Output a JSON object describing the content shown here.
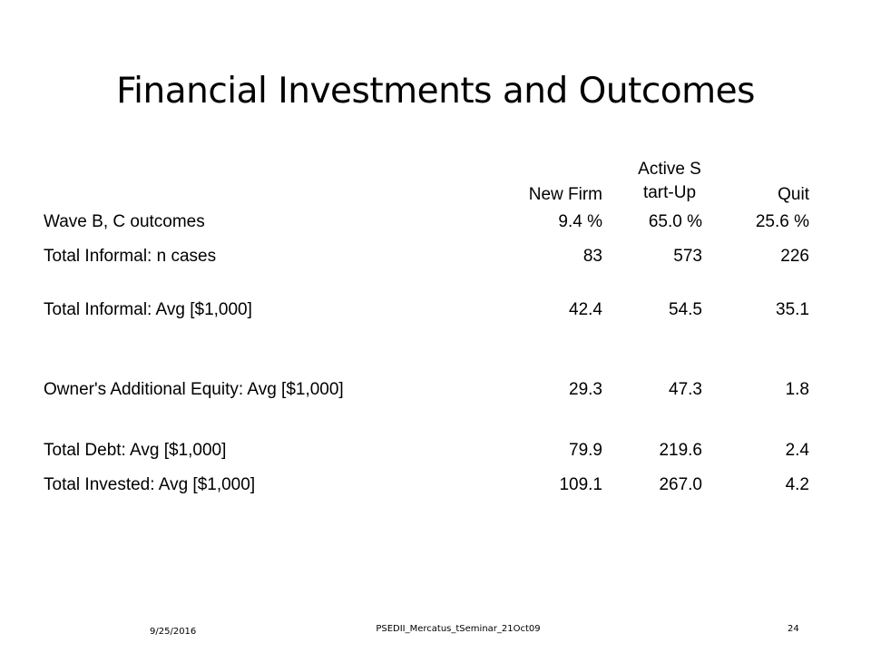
{
  "slide": {
    "title": "Financial Investments and Outcomes"
  },
  "table": {
    "columns": [
      "",
      "New Firm",
      "Active Start-Up",
      "Quit"
    ],
    "rows": [
      {
        "label": "Wave B, C outcomes",
        "new_firm": "9.4 %",
        "active_start_up": "65.0 %",
        "quit": "25.6 %"
      },
      {
        "label": "Total Informal: n cases",
        "new_firm": "83",
        "active_start_up": "573",
        "quit": "226"
      },
      {
        "label": "Total Informal: Avg [$1,000]",
        "new_firm": "42.4",
        "active_start_up": "54.5",
        "quit": "35.1"
      },
      {
        "label": "Owner's Additional Equity: Avg [$1,000]",
        "new_firm": "29.3",
        "active_start_up": "47.3",
        "quit": "1.8"
      },
      {
        "label": "Total Debt: Avg [$1,000]",
        "new_firm": "79.9",
        "active_start_up": "219.6",
        "quit": "2.4"
      },
      {
        "label": "Total Invested: Avg [$1,000]",
        "new_firm": "109.1",
        "active_start_up": "267.0",
        "quit": "4.2"
      }
    ]
  },
  "footer": {
    "date": "9/25/2016",
    "source": "PSEDII_Mercatus_tSeminar_21Oct09",
    "page_number": "24"
  }
}
